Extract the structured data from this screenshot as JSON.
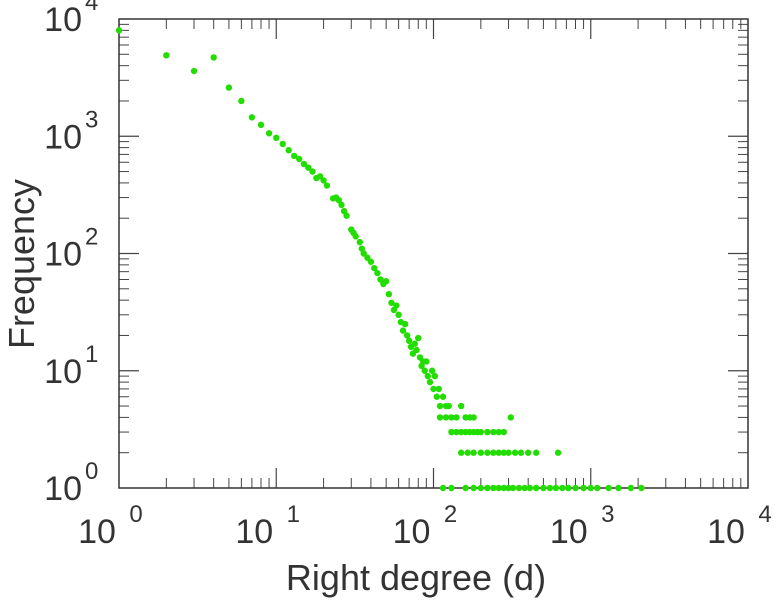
{
  "chart_data": {
    "type": "scatter",
    "xlabel": "Right degree (d)",
    "ylabel": "Frequency",
    "xscale": "log",
    "yscale": "log",
    "xlim": [
      1,
      10000
    ],
    "ylim": [
      1,
      10000
    ],
    "grid": false,
    "legend": "none",
    "x_ticks": [
      {
        "base": "10",
        "exp": "0"
      },
      {
        "base": "10",
        "exp": "1"
      },
      {
        "base": "10",
        "exp": "2"
      },
      {
        "base": "10",
        "exp": "3"
      },
      {
        "base": "10",
        "exp": "4"
      }
    ],
    "y_ticks": [
      {
        "base": "10",
        "exp": "0"
      },
      {
        "base": "10",
        "exp": "1"
      },
      {
        "base": "10",
        "exp": "2"
      },
      {
        "base": "10",
        "exp": "3"
      },
      {
        "base": "10",
        "exp": "4"
      }
    ],
    "marker_color": "#22dd00",
    "points": [
      [
        1,
        8000
      ],
      [
        2,
        4900
      ],
      [
        3,
        3600
      ],
      [
        4,
        4700
      ],
      [
        5,
        2600
      ],
      [
        6,
        2000
      ],
      [
        7,
        1450
      ],
      [
        8,
        1250
      ],
      [
        9,
        1060
      ],
      [
        10,
        970
      ],
      [
        11,
        860
      ],
      [
        12,
        760
      ],
      [
        13,
        680
      ],
      [
        14,
        640
      ],
      [
        15,
        580
      ],
      [
        16,
        540
      ],
      [
        17,
        500
      ],
      [
        18,
        440
      ],
      [
        19,
        455
      ],
      [
        20,
        420
      ],
      [
        21,
        380
      ],
      [
        23,
        295
      ],
      [
        24,
        300
      ],
      [
        25,
        285
      ],
      [
        26,
        260
      ],
      [
        27,
        230
      ],
      [
        28,
        210
      ],
      [
        30,
        160
      ],
      [
        31,
        150
      ],
      [
        32,
        140
      ],
      [
        34,
        125
      ],
      [
        35,
        110
      ],
      [
        36,
        100
      ],
      [
        38,
        92
      ],
      [
        40,
        85
      ],
      [
        42,
        75
      ],
      [
        44,
        68
      ],
      [
        46,
        60
      ],
      [
        48,
        55
      ],
      [
        50,
        58
      ],
      [
        52,
        45
      ],
      [
        54,
        38
      ],
      [
        56,
        33
      ],
      [
        58,
        36
      ],
      [
        60,
        30
      ],
      [
        62,
        26
      ],
      [
        64,
        22
      ],
      [
        66,
        25
      ],
      [
        68,
        20
      ],
      [
        70,
        18
      ],
      [
        72,
        16
      ],
      [
        74,
        14
      ],
      [
        76,
        17
      ],
      [
        78,
        15
      ],
      [
        80,
        19
      ],
      [
        82,
        13
      ],
      [
        84,
        11
      ],
      [
        86,
        12
      ],
      [
        88,
        10
      ],
      [
        90,
        12
      ],
      [
        92,
        9
      ],
      [
        95,
        8
      ],
      [
        98,
        10
      ],
      [
        100,
        7
      ],
      [
        102,
        9
      ],
      [
        105,
        6
      ],
      [
        108,
        7
      ],
      [
        110,
        5
      ],
      [
        115,
        6
      ],
      [
        120,
        5
      ],
      [
        125,
        5
      ],
      [
        130,
        4
      ],
      [
        110,
        4
      ],
      [
        120,
        4
      ],
      [
        140,
        4
      ],
      [
        150,
        5
      ],
      [
        160,
        4
      ],
      [
        170,
        4
      ],
      [
        180,
        4
      ],
      [
        130,
        3
      ],
      [
        140,
        3
      ],
      [
        150,
        3
      ],
      [
        160,
        3
      ],
      [
        170,
        3
      ],
      [
        180,
        3
      ],
      [
        190,
        3
      ],
      [
        200,
        3
      ],
      [
        220,
        3
      ],
      [
        240,
        3
      ],
      [
        260,
        3
      ],
      [
        280,
        3
      ],
      [
        310,
        4
      ],
      [
        150,
        2
      ],
      [
        165,
        2
      ],
      [
        180,
        2
      ],
      [
        200,
        2
      ],
      [
        220,
        2
      ],
      [
        240,
        2
      ],
      [
        260,
        2
      ],
      [
        280,
        2
      ],
      [
        300,
        2
      ],
      [
        330,
        2
      ],
      [
        360,
        2
      ],
      [
        400,
        2
      ],
      [
        450,
        2
      ],
      [
        620,
        2
      ],
      [
        115,
        1
      ],
      [
        130,
        1
      ],
      [
        160,
        1
      ],
      [
        180,
        1
      ],
      [
        200,
        1
      ],
      [
        220,
        1
      ],
      [
        240,
        1
      ],
      [
        260,
        1
      ],
      [
        280,
        1
      ],
      [
        300,
        1
      ],
      [
        320,
        1
      ],
      [
        350,
        1
      ],
      [
        380,
        1
      ],
      [
        410,
        1
      ],
      [
        450,
        1
      ],
      [
        500,
        1
      ],
      [
        550,
        1
      ],
      [
        600,
        1
      ],
      [
        660,
        1
      ],
      [
        720,
        1
      ],
      [
        800,
        1
      ],
      [
        900,
        1
      ],
      [
        1000,
        1
      ],
      [
        1100,
        1
      ],
      [
        1300,
        1
      ],
      [
        1500,
        1
      ],
      [
        1800,
        1
      ],
      [
        2100,
        1
      ]
    ]
  }
}
